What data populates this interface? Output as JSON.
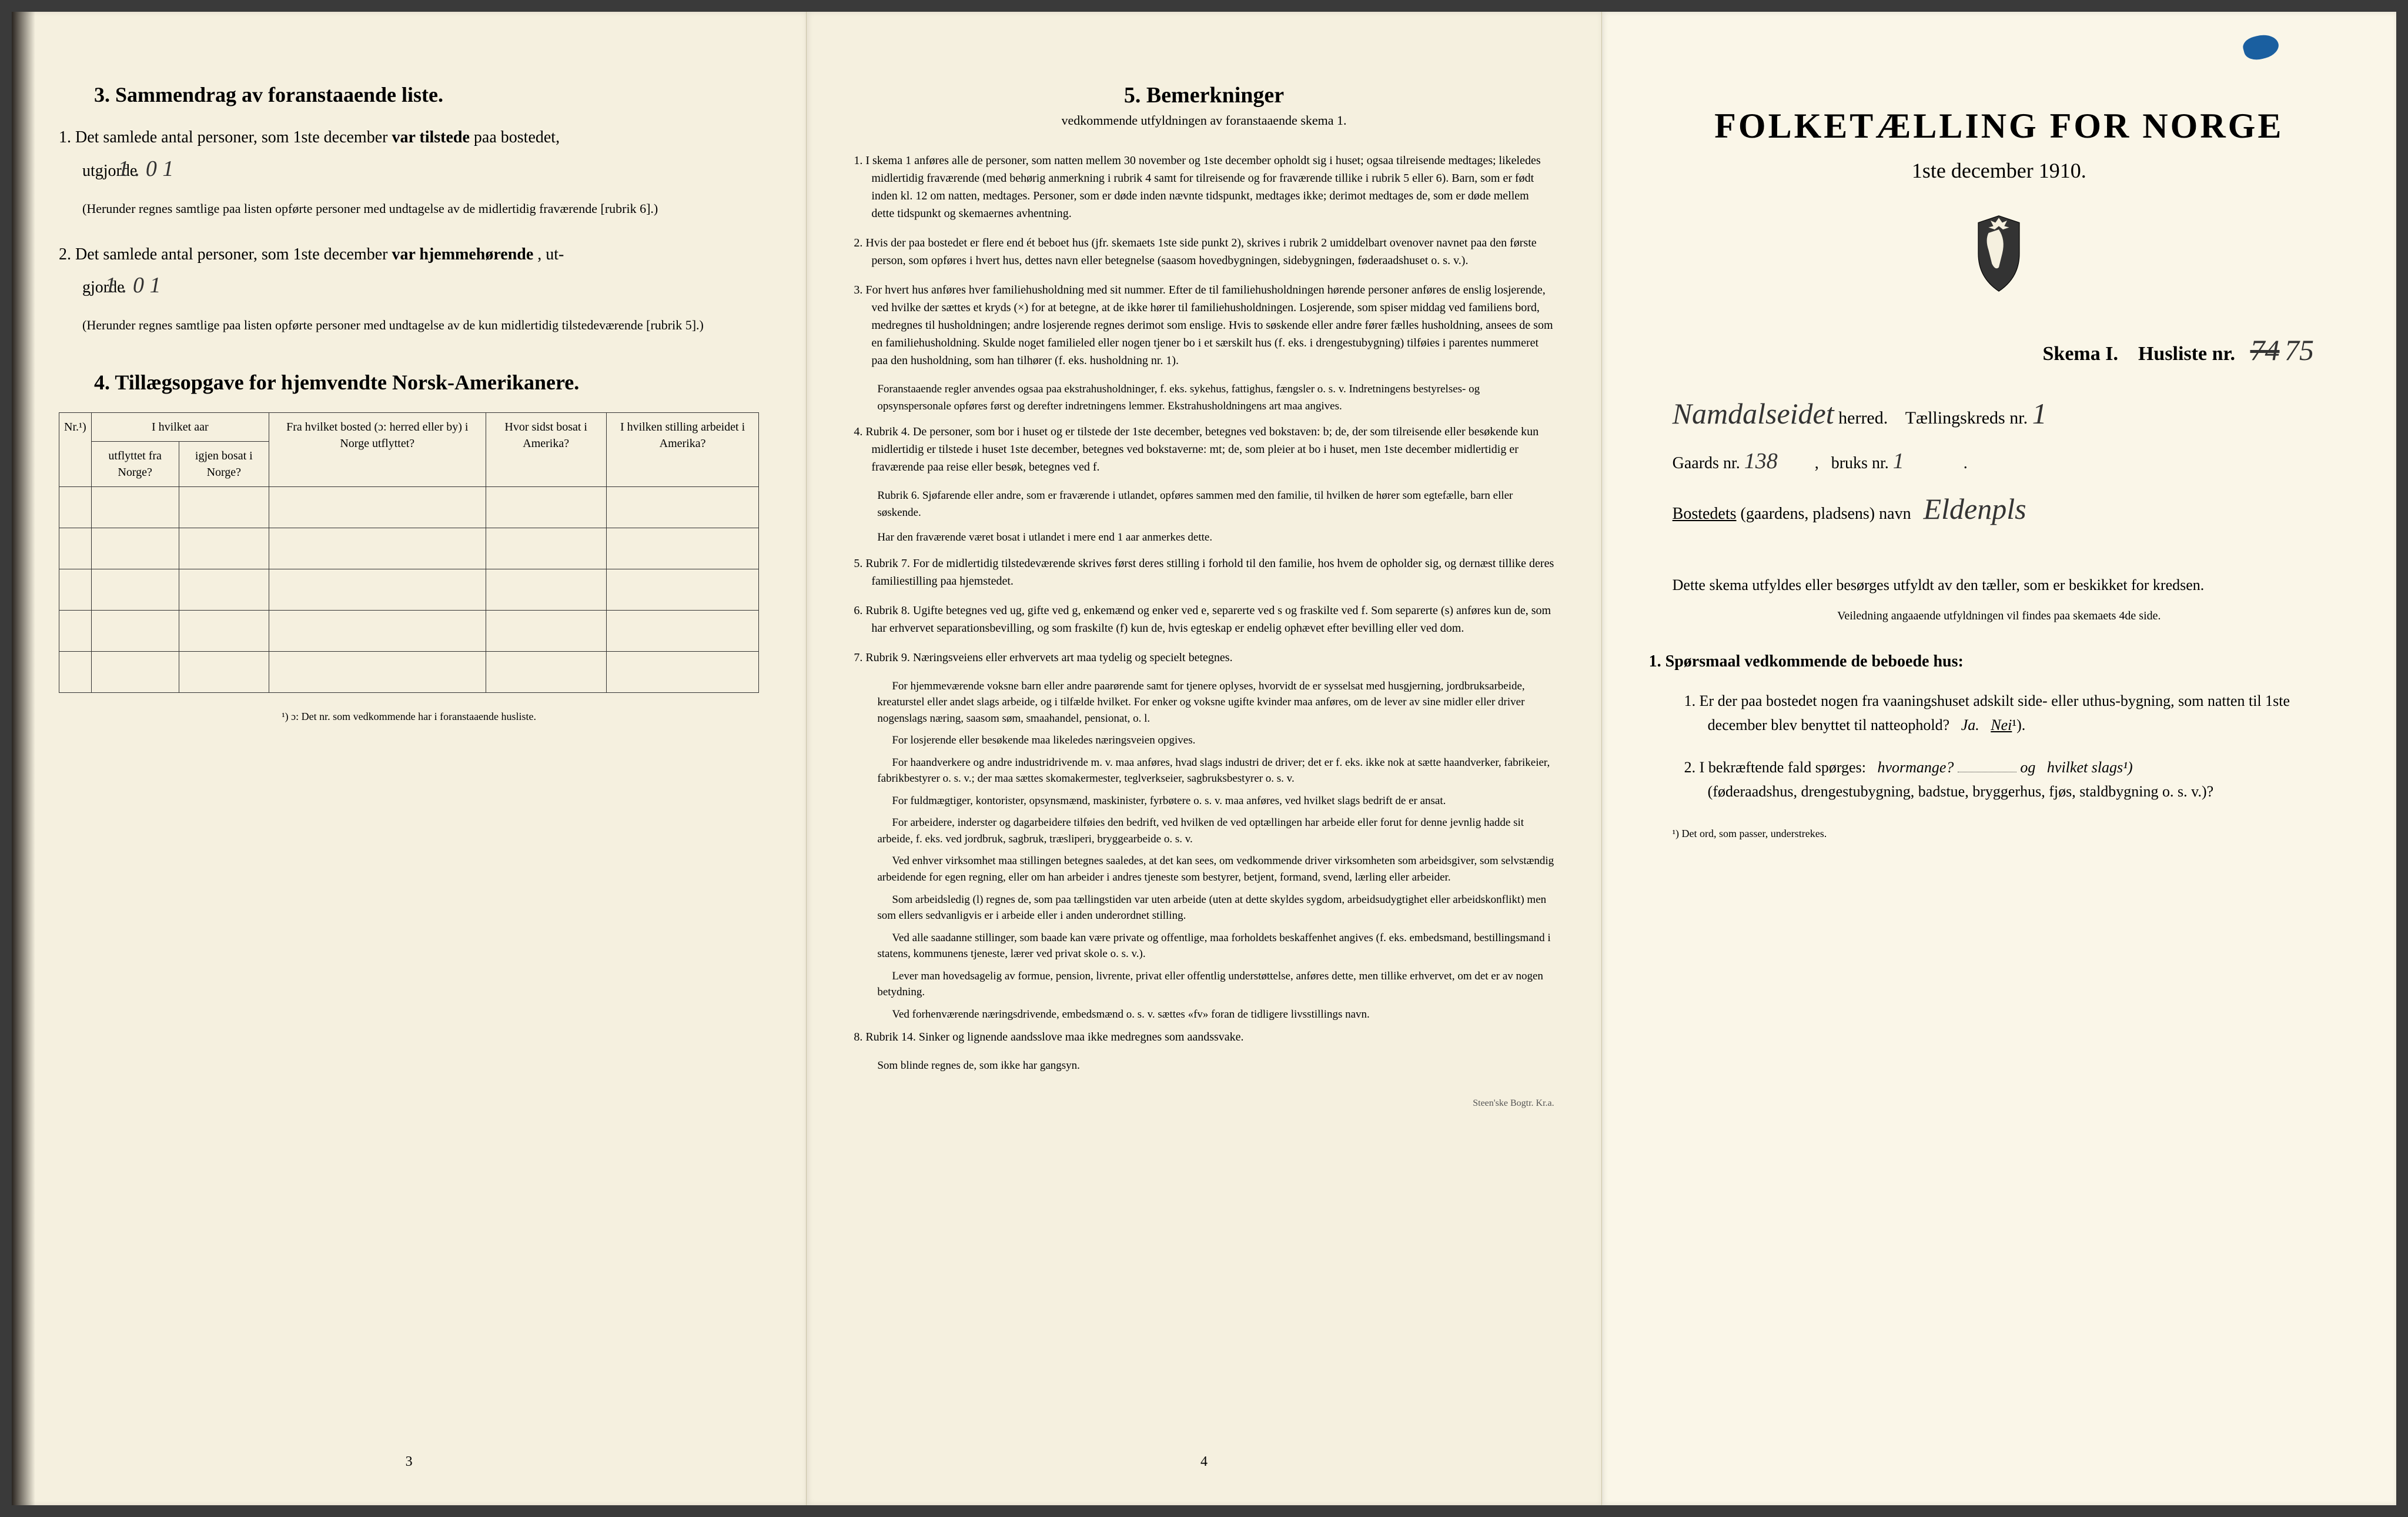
{
  "colors": {
    "page_bg": "#f5f0df",
    "page_right_bg": "#faf6e8",
    "text": "#1a1a1a",
    "border": "#333333",
    "handwriting": "#333333",
    "blue_mark": "#1a5fa0"
  },
  "leftPage": {
    "section3": {
      "title": "3.   Sammendrag av foranstaaende liste.",
      "item1_prefix": "1.  Det samlede antal personer, som 1ste december",
      "item1_bold": "var tilstede",
      "item1_suffix": "paa bostedet,",
      "item1_line2": "utgjorde",
      "item1_value": "1 . 0   1",
      "item1_note": "(Herunder regnes samtlige paa listen opførte personer med undtagelse av de midlertidig fraværende [rubrik 6].)",
      "item2_prefix": "2.  Det samlede antal personer, som 1ste december",
      "item2_bold": "var hjemmehørende",
      "item2_suffix": ", ut-",
      "item2_line2": "gjorde",
      "item2_value": "1 . 0   1",
      "item2_note": "(Herunder regnes samtlige paa listen opførte personer med undtagelse av de kun midlertidig tilstedeværende [rubrik 5].)"
    },
    "section4": {
      "title": "4.  Tillægsopgave for hjemvendte Norsk-Amerikanere.",
      "headers": {
        "col1": "Nr.¹)",
        "col2_top": "I hvilket aar",
        "col2a": "utflyttet fra Norge?",
        "col2b": "igjen bosat i Norge?",
        "col3": "Fra hvilket bosted (ɔ: herred eller by) i Norge utflyttet?",
        "col4": "Hvor sidst bosat i Amerika?",
        "col5": "I hvilken stilling arbeidet i Amerika?"
      },
      "rows": 5,
      "footnote": "¹) ɔ: Det nr. som vedkommende har i foranstaaende husliste."
    },
    "pageNumber": "3"
  },
  "middlePage": {
    "title": "5.   Bemerkninger",
    "subtitle": "vedkommende utfyldningen av foranstaaende skema 1.",
    "items": [
      {
        "num": "1.",
        "text": "I skema 1 anføres alle de personer, som natten mellem 30 november og 1ste december opholdt sig i huset; ogsaa tilreisende medtages; likeledes midlertidig fraværende (med behørig anmerkning i rubrik 4 samt for tilreisende og for fraværende tillike i rubrik 5 eller 6). Barn, som er født inden kl. 12 om natten, medtages. Personer, som er døde inden nævnte tidspunkt, medtages ikke; derimot medtages de, som er døde mellem dette tidspunkt og skemaernes avhentning."
      },
      {
        "num": "2.",
        "text": "Hvis der paa bostedet er flere end ét beboet hus (jfr. skemaets 1ste side punkt 2), skrives i rubrik 2 umiddelbart ovenover navnet paa den første person, som opføres i hvert hus, dettes navn eller betegnelse (saasom hovedbygningen, sidebygningen, føderaadshuset o. s. v.)."
      },
      {
        "num": "3.",
        "text": "For hvert hus anføres hver familiehusholdning med sit nummer. Efter de til familiehusholdningen hørende personer anføres de enslig losjerende, ved hvilke der sættes et kryds (×) for at betegne, at de ikke hører til familiehusholdningen. Losjerende, som spiser middag ved familiens bord, medregnes til husholdningen; andre losjerende regnes derimot som enslige. Hvis to søskende eller andre fører fælles husholdning, ansees de som en familiehusholdning. Skulde noget familieled eller nogen tjener bo i et særskilt hus (f. eks. i drengestubygning) tilføies i parentes nummeret paa den husholdning, som han tilhører (f. eks. husholdning nr. 1).",
        "sub": "Foranstaaende regler anvendes ogsaa paa ekstrahusholdninger, f. eks. sykehus, fattighus, fængsler o. s. v. Indretningens bestyrelses- og opsynspersonale opføres først og derefter indretningens lemmer. Ekstrahusholdningens art maa angives."
      },
      {
        "num": "4.",
        "text": "Rubrik 4. De personer, som bor i huset og er tilstede der 1ste december, betegnes ved bokstaven: b; de, der som tilreisende eller besøkende kun midlertidig er tilstede i huset 1ste december, betegnes ved bokstaverne: mt; de, som pleier at bo i huset, men 1ste december midlertidig er fraværende paa reise eller besøk, betegnes ved f.",
        "sub": "Rubrik 6. Sjøfarende eller andre, som er fraværende i utlandet, opføres sammen med den familie, til hvilken de hører som egtefælle, barn eller søskende.",
        "sub2": "Har den fraværende været bosat i utlandet i mere end 1 aar anmerkes dette."
      },
      {
        "num": "5.",
        "text": "Rubrik 7. For de midlertidig tilstedeværende skrives først deres stilling i forhold til den familie, hos hvem de opholder sig, og dernæst tillike deres familiestilling paa hjemstedet."
      },
      {
        "num": "6.",
        "text": "Rubrik 8. Ugifte betegnes ved ug, gifte ved g, enkemænd og enker ved e, separerte ved s og fraskilte ved f. Som separerte (s) anføres kun de, som har erhvervet separationsbevilling, og som fraskilte (f) kun de, hvis egteskap er endelig ophævet efter bevilling eller ved dom."
      },
      {
        "num": "7.",
        "text": "Rubrik 9. Næringsveiens eller erhvervets art maa tydelig og specielt betegnes.",
        "paras": [
          "For hjemmeværende voksne barn eller andre paarørende samt for tjenere oplyses, hvorvidt de er sysselsat med husgjerning, jordbruksarbeide, kreaturstel eller andet slags arbeide, og i tilfælde hvilket. For enker og voksne ugifte kvinder maa anføres, om de lever av sine midler eller driver nogenslags næring, saasom søm, smaahandel, pensionat, o. l.",
          "For losjerende eller besøkende maa likeledes næringsveien opgives.",
          "For haandverkere og andre industridrivende m. v. maa anføres, hvad slags industri de driver; det er f. eks. ikke nok at sætte haandverker, fabrikeier, fabrikbestyrer o. s. v.; der maa sættes skomakermester, teglverkseier, sagbruksbestyrer o. s. v.",
          "For fuldmægtiger, kontorister, opsynsmænd, maskinister, fyrbøtere o. s. v. maa anføres, ved hvilket slags bedrift de er ansat.",
          "For arbeidere, inderster og dagarbeidere tilføies den bedrift, ved hvilken de ved optællingen har arbeide eller forut for denne jevnlig hadde sit arbeide, f. eks. ved jordbruk, sagbruk, træsliperi, bryggearbeide o. s. v.",
          "Ved enhver virksomhet maa stillingen betegnes saaledes, at det kan sees, om vedkommende driver virksomheten som arbeidsgiver, som selvstændig arbeidende for egen regning, eller om han arbeider i andres tjeneste som bestyrer, betjent, formand, svend, lærling eller arbeider.",
          "Som arbeidsledig (l) regnes de, som paa tællingstiden var uten arbeide (uten at dette skyldes sygdom, arbeidsudygtighet eller arbeidskonflikt) men som ellers sedvanligvis er i arbeide eller i anden underordnet stilling.",
          "Ved alle saadanne stillinger, som baade kan være private og offentlige, maa forholdets beskaffenhet angives (f. eks. embedsmand, bestillingsmand i statens, kommunens tjeneste, lærer ved privat skole o. s. v.).",
          "Lever man hovedsagelig av formue, pension, livrente, privat eller offentlig understøttelse, anføres dette, men tillike erhvervet, om det er av nogen betydning.",
          "Ved forhenværende næringsdrivende, embedsmænd o. s. v. sættes «fv» foran de tidligere livsstillings navn."
        ]
      },
      {
        "num": "8.",
        "text": "Rubrik 14. Sinker og lignende aandsslove maa ikke medregnes som aandssvake.",
        "sub": "Som blinde regnes de, som ikke har gangsyn."
      }
    ],
    "pageNumber": "4",
    "printer": "Steen'ske Bogtr.  Kr.a."
  },
  "rightPage": {
    "mainTitle": "FOLKETÆLLING FOR NORGE",
    "date": "1ste december 1910.",
    "schemaLabel": "Skema I.",
    "huslisteLabel": "Husliste nr.",
    "huslisteStruck": "74",
    "huslisteValue": "75",
    "herredName": "Namdalseidet",
    "herredLabel": "herred.",
    "taellingskreds": "Tællingskreds nr.",
    "taellingskredsValue": "1",
    "gaardsLabel": "Gaards nr.",
    "gaardsValue": "138",
    "bruksLabel": "bruks nr.",
    "bruksValue": "1",
    "bostedLabel": "Bostedets",
    "bostedParen": "(gaardens, pladsens)",
    "bostedNavn": "navn",
    "bostedValue": "Eldenpls",
    "instructions": "Dette skema utfyldes eller besørges utfyldt av den tæller, som er beskikket for kredsen.",
    "instructionsSmall": "Veiledning angaaende utfyldningen vil findes paa skemaets 4de side.",
    "section1Title": "1. Spørsmaal vedkommende de beboede hus:",
    "q1": "1.  Er der paa bostedet nogen fra vaaningshuset adskilt side- eller uthus-bygning, som natten til 1ste december blev benyttet til natteophold?",
    "q1_ja": "Ja.",
    "q1_nei": "Nei",
    "q1_sup": "¹).",
    "q2": "2.  I bekræftende fald spørges:",
    "q2_italic1": "hvormange?",
    "q2_og": "og",
    "q2_italic2": "hvilket slags¹)",
    "q2_paren": "(føderaadshus, drengestubygning, badstue, bryggerhus, fjøs, staldbygning o. s. v.)?",
    "footnote": "¹) Det ord, som passer, understrekes."
  }
}
